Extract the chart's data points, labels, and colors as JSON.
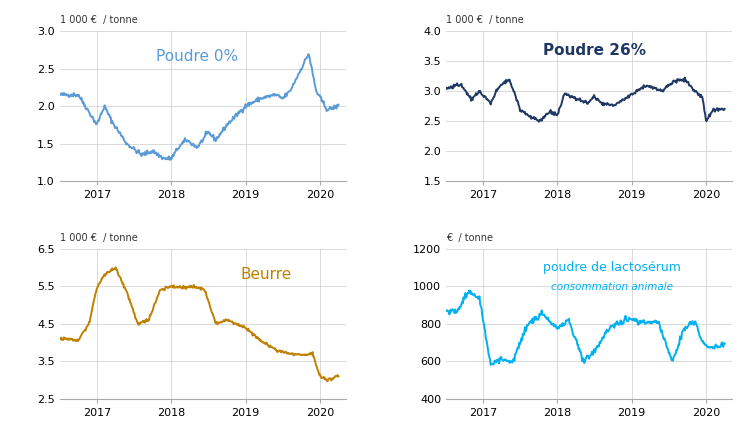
{
  "panel1": {
    "title": "Poudre 0%",
    "title_color": "#5B9BD5",
    "ylabel": "1 000 €  / tonne",
    "ylim": [
      1.0,
      3.0
    ],
    "yticks": [
      1.0,
      1.5,
      2.0,
      2.5,
      3.0
    ],
    "color": "#5B9BD5",
    "linewidth": 1.4
  },
  "panel2": {
    "title": "Poudre 26%",
    "title_color": "#1F3864",
    "ylabel": "1 000 €  / tonne",
    "ylim": [
      1.5,
      4.0
    ],
    "yticks": [
      1.5,
      2.0,
      2.5,
      3.0,
      3.5,
      4.0
    ],
    "color": "#1F3864",
    "linewidth": 1.4
  },
  "panel3": {
    "title": "Beurre",
    "title_color": "#C08000",
    "ylabel": "1 000 €  / tonne",
    "ylim": [
      2.5,
      6.5
    ],
    "yticks": [
      2.5,
      3.5,
      4.5,
      5.5,
      6.5
    ],
    "color": "#C08000",
    "linewidth": 1.4
  },
  "panel4": {
    "title": "poudre de lactosérum",
    "subtitle": "consommation animale",
    "title_color": "#00B0F0",
    "ylabel": "€  / tonne",
    "ylim": [
      400,
      1200
    ],
    "yticks": [
      400,
      600,
      800,
      1000,
      1200
    ],
    "color": "#00B0F0",
    "linewidth": 1.4
  },
  "xticks_years": [
    "2017",
    "2018",
    "2019",
    "2020"
  ],
  "background_color": "#ffffff",
  "grid_color": "#cccccc"
}
